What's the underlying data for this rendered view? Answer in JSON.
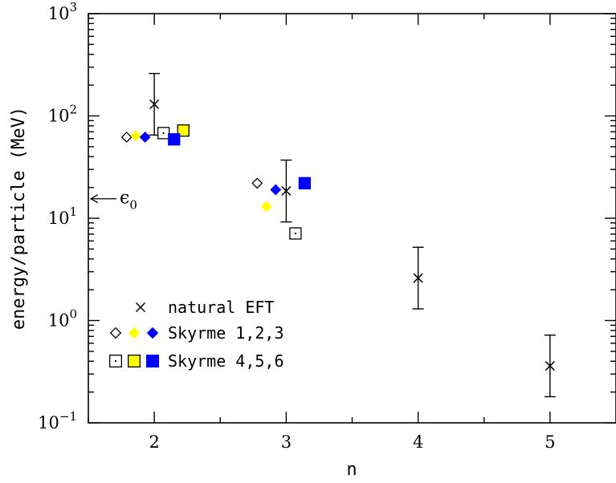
{
  "chart_data": {
    "type": "scatter",
    "xlabel": "n",
    "ylabel": "energy/particle (MeV)",
    "xlim": [
      1.5,
      5.5
    ],
    "ylim": [
      0.1,
      1000
    ],
    "yscale": "log",
    "x_ticks": [
      "2",
      "3",
      "4",
      "5"
    ],
    "y_ticks": [
      {
        "base": "10",
        "exp": "3"
      },
      {
        "base": "10",
        "exp": "2"
      },
      {
        "base": "10",
        "exp": "1"
      },
      {
        "base": "10",
        "exp": "0"
      },
      {
        "base": "10",
        "exp": "−1"
      }
    ],
    "colors": {
      "yellow": "#ffff00",
      "blue": "#0000ff",
      "open": "#ffffff"
    },
    "series": [
      {
        "name": "natural EFT",
        "marker": "x",
        "points": [
          {
            "x": 2,
            "y": 130,
            "ylow": 65,
            "yhigh": 260
          },
          {
            "x": 3,
            "y": 18.5,
            "ylow": 9.2,
            "yhigh": 37
          },
          {
            "x": 4,
            "y": 2.6,
            "ylow": 1.3,
            "yhigh": 5.2
          },
          {
            "x": 5,
            "y": 0.36,
            "ylow": 0.18,
            "yhigh": 0.72
          }
        ]
      },
      {
        "name": "Skyrme 1",
        "marker": "diamond-open",
        "points": [
          {
            "x": 1.79,
            "y": 62
          },
          {
            "x": 2.78,
            "y": 22
          }
        ]
      },
      {
        "name": "Skyrme 2",
        "marker": "diamond-yellow",
        "points": [
          {
            "x": 1.86,
            "y": 64
          },
          {
            "x": 2.85,
            "y": 13
          }
        ]
      },
      {
        "name": "Skyrme 3",
        "marker": "diamond-blue",
        "points": [
          {
            "x": 1.93,
            "y": 62
          },
          {
            "x": 2.92,
            "y": 19
          }
        ]
      },
      {
        "name": "Skyrme 4",
        "marker": "square-open",
        "points": [
          {
            "x": 2.07,
            "y": 68
          },
          {
            "x": 3.07,
            "y": 7.1
          }
        ]
      },
      {
        "name": "Skyrme 5",
        "marker": "square-yellow",
        "points": [
          {
            "x": 2.22,
            "y": 72
          }
        ]
      },
      {
        "name": "Skyrme 6",
        "marker": "square-blue",
        "points": [
          {
            "x": 2.15,
            "y": 59
          },
          {
            "x": 3.14,
            "y": 22
          }
        ]
      }
    ],
    "legend": {
      "position": "bottom-left",
      "entries": [
        {
          "label": "natural EFT",
          "markers": [
            "x"
          ]
        },
        {
          "label": "Skyrme 1,2,3",
          "markers": [
            "diamond-open",
            "diamond-yellow",
            "diamond-blue"
          ]
        },
        {
          "label": "Skyrme 4,5,6",
          "markers": [
            "square-open",
            "square-yellow",
            "square-blue"
          ]
        }
      ]
    },
    "annotations": [
      {
        "label": "ϵ",
        "sub": "0",
        "y": 15.5,
        "side": "left",
        "arrow": true
      }
    ]
  }
}
